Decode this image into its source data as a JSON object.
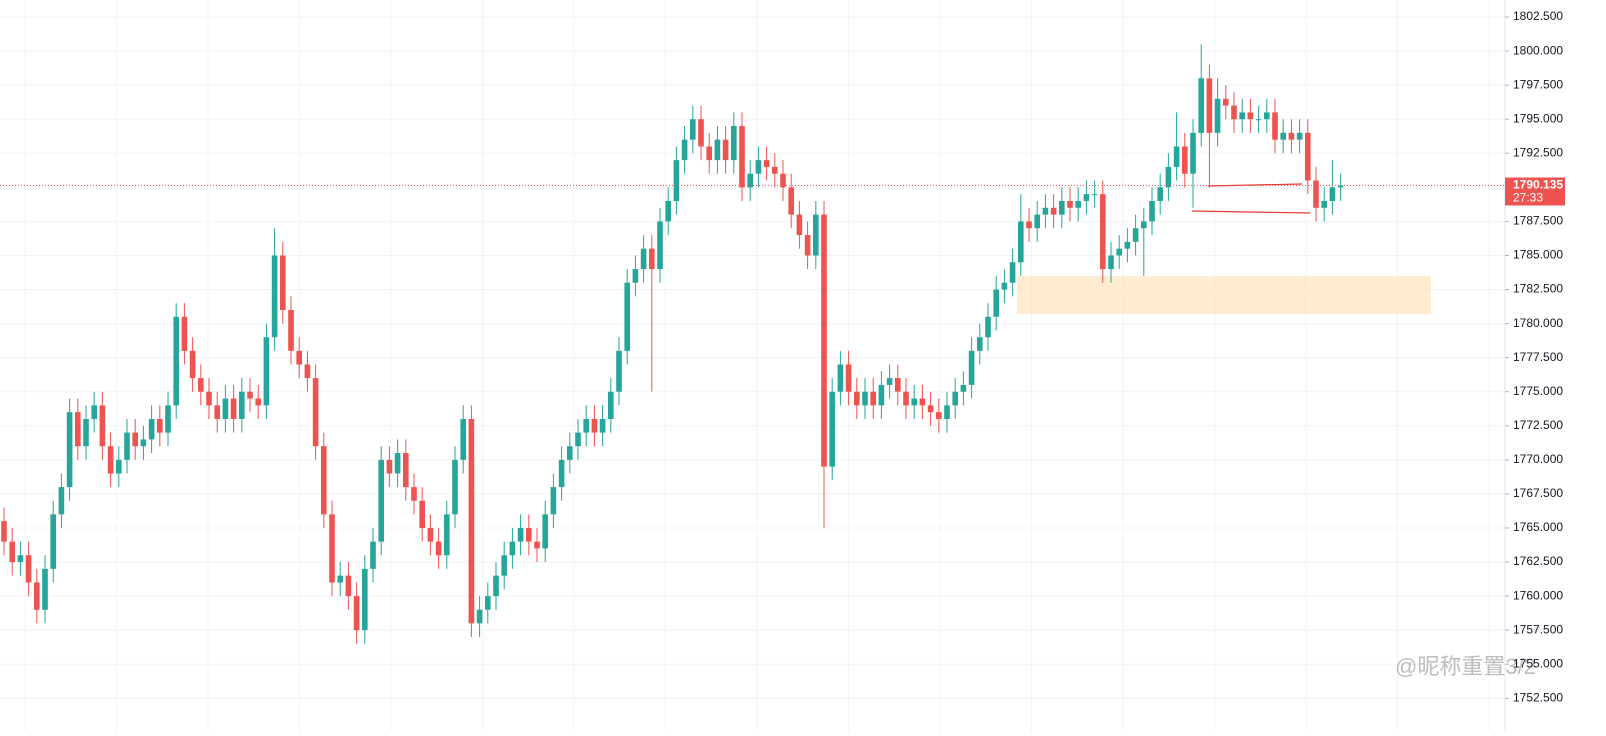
{
  "chart_data": {
    "type": "candlestick",
    "ylim": [
      1750.1,
      1803.75
    ],
    "yticks": [
      {
        "value": 1752.5,
        "label": "1752.500"
      },
      {
        "value": 1755,
        "label": "1755.000"
      },
      {
        "value": 1757.5,
        "label": "1757.500"
      },
      {
        "value": 1760,
        "label": "1760.000"
      },
      {
        "value": 1762.5,
        "label": "1762.500"
      },
      {
        "value": 1765,
        "label": "1765.000"
      },
      {
        "value": 1767.5,
        "label": "1767.500"
      },
      {
        "value": 1770,
        "label": "1770.000"
      },
      {
        "value": 1772.5,
        "label": "1772.500"
      },
      {
        "value": 1775,
        "label": "1775.000"
      },
      {
        "value": 1777.5,
        "label": "1777.500"
      },
      {
        "value": 1780,
        "label": "1780.000"
      },
      {
        "value": 1782.5,
        "label": "1782.500"
      },
      {
        "value": 1785,
        "label": "1785.000"
      },
      {
        "value": 1787.5,
        "label": "1787.500"
      },
      {
        "value": 1790,
        "label": "1790.000"
      },
      {
        "value": 1792.5,
        "label": "1792.500"
      },
      {
        "value": 1795,
        "label": "1795.000"
      },
      {
        "value": 1797.5,
        "label": "1797.500"
      },
      {
        "value": 1800,
        "label": "1800.000"
      },
      {
        "value": 1802.5,
        "label": "1802.500"
      }
    ],
    "grid": true,
    "up_color": "#26a69a",
    "down_color": "#ef5350",
    "last_price": 1790.135,
    "countdown": "27:33",
    "watermark": "@昵称重置3/2",
    "open": [
      1765.5,
      1764,
      1762.5,
      1763,
      1761,
      1759,
      1762,
      1766,
      1768,
      1773.5,
      1771,
      1773,
      1774,
      1771,
      1769,
      1770,
      1772,
      1771,
      1771.5,
      1773,
      1772,
      1774,
      1780.5,
      1778,
      1776,
      1775,
      1774,
      1773,
      1774.5,
      1773,
      1775,
      1774.5,
      1774,
      1779,
      1785,
      1781,
      1778,
      1777,
      1776,
      1771,
      1766,
      1761,
      1761.5,
      1760,
      1757.5,
      1762,
      1764,
      1770,
      1769,
      1770.5,
      1768,
      1767,
      1765,
      1764,
      1763,
      1766,
      1770,
      1773,
      1758,
      1759,
      1760,
      1761.5,
      1763,
      1764,
      1765,
      1764,
      1763.5,
      1766,
      1768,
      1770,
      1771,
      1772,
      1773,
      1772,
      1773,
      1775,
      1778,
      1783,
      1784,
      1785.5,
      1784,
      1787.5,
      1789,
      1792,
      1793.5,
      1795,
      1793,
      1792,
      1793.5,
      1792,
      1794.5,
      1790,
      1791,
      1792,
      1791.5,
      1791,
      1790,
      1788,
      1786.5,
      1785,
      1788,
      1769.5,
      1775,
      1777,
      1775,
      1774,
      1775,
      1774,
      1775.5,
      1776,
      1775,
      1774,
      1774.5,
      1774,
      1773.5,
      1773,
      1774,
      1775,
      1775.5,
      1778,
      1779,
      1780.5,
      1782.5,
      1783,
      1784.5,
      1787.5,
      1787,
      1788,
      1788.5,
      1788,
      1789,
      1788.5,
      1789,
      1789.5,
      1789.5,
      1784,
      1785,
      1785.5,
      1786,
      1787,
      1787.5,
      1789,
      1790,
      1791.5,
      1793,
      1791,
      1794,
      1798,
      1794,
      1796.5,
      1796,
      1795,
      1795.5,
      1795,
      1795,
      1795.5,
      1793.5,
      1794,
      1793.5,
      1794,
      1790.5,
      1788.5,
      1789,
      1790
    ],
    "high": [
      1766.5,
      1765,
      1764,
      1764,
      1762,
      1763,
      1767,
      1769,
      1774.5,
      1774.5,
      1774,
      1775,
      1775,
      1772,
      1771,
      1773,
      1773,
      1772.5,
      1774,
      1774,
      1775,
      1781.5,
      1781.5,
      1779,
      1777,
      1776,
      1775,
      1775.5,
      1775.5,
      1776,
      1776,
      1775.5,
      1780,
      1787,
      1786,
      1782,
      1779,
      1778,
      1777,
      1772,
      1767,
      1762.5,
      1762.5,
      1761,
      1763,
      1765,
      1771,
      1771,
      1771.5,
      1771.5,
      1769,
      1768,
      1766,
      1765,
      1767,
      1771,
      1774,
      1774,
      1760,
      1761,
      1762.5,
      1764,
      1765,
      1766,
      1766,
      1765,
      1767,
      1769,
      1771,
      1772,
      1773,
      1774,
      1774,
      1774,
      1776,
      1779,
      1784,
      1785,
      1786.5,
      1786.5,
      1788.5,
      1790,
      1793,
      1794.5,
      1796,
      1796,
      1794,
      1794.5,
      1794.5,
      1795.5,
      1795.5,
      1792,
      1793,
      1793,
      1792.5,
      1792,
      1791,
      1789,
      1787.5,
      1789,
      1789,
      1776,
      1778,
      1778,
      1776,
      1776,
      1776,
      1776.5,
      1777,
      1777,
      1776,
      1775.5,
      1775.5,
      1775,
      1774.5,
      1775,
      1776,
      1776.5,
      1779,
      1780,
      1781.5,
      1783.5,
      1784,
      1785.5,
      1789.5,
      1788.5,
      1789,
      1789.5,
      1789.5,
      1790,
      1790,
      1790,
      1790.5,
      1790.5,
      1790.5,
      1786,
      1786.5,
      1787,
      1788,
      1788.5,
      1790,
      1791,
      1792.5,
      1795.5,
      1794,
      1795,
      1800.5,
      1799,
      1798,
      1797.5,
      1797,
      1796.5,
      1796.5,
      1796,
      1796.5,
      1796.5,
      1795,
      1795,
      1795,
      1795,
      1791.5,
      1790,
      1792,
      1791
    ],
    "low": [
      1763,
      1761.5,
      1761.5,
      1760,
      1758,
      1758,
      1761,
      1765,
      1767,
      1770,
      1770,
      1772,
      1770,
      1768,
      1768,
      1769,
      1770,
      1770,
      1770.5,
      1771,
      1771,
      1773,
      1777,
      1775,
      1774,
      1773,
      1772,
      1772,
      1772,
      1772,
      1773.5,
      1773,
      1773,
      1778,
      1780,
      1777,
      1776,
      1775,
      1770,
      1765,
      1760,
      1760,
      1759,
      1756.5,
      1756.5,
      1761,
      1763,
      1768,
      1768,
      1767,
      1766,
      1764,
      1763,
      1762,
      1762,
      1765,
      1769,
      1757,
      1757,
      1758,
      1759,
      1760.5,
      1762,
      1763,
      1763,
      1762.5,
      1762.5,
      1765,
      1767,
      1769,
      1770,
      1771,
      1771,
      1771,
      1772,
      1774,
      1777,
      1782,
      1783,
      1775,
      1783,
      1786.5,
      1788,
      1791,
      1792.5,
      1792,
      1791,
      1791,
      1791,
      1791,
      1789,
      1789,
      1790,
      1790.5,
      1790,
      1789,
      1787,
      1785.5,
      1784,
      1784,
      1765,
      1768.5,
      1774,
      1774,
      1773,
      1773,
      1773,
      1773,
      1774.5,
      1774,
      1773,
      1773,
      1773,
      1772.5,
      1772,
      1772,
      1773,
      1774,
      1774.5,
      1777,
      1778,
      1779.5,
      1781.5,
      1782,
      1783.5,
      1786,
      1786,
      1787,
      1787,
      1787,
      1787.5,
      1787.5,
      1788,
      1788.5,
      1783,
      1783,
      1784,
      1784.5,
      1785,
      1783.5,
      1786.5,
      1788,
      1789,
      1790.5,
      1790,
      1788.5,
      1793,
      1790,
      1793,
      1795,
      1794,
      1794,
      1794,
      1794,
      1794,
      1792.5,
      1792.5,
      1792.5,
      1792.5,
      1789.5,
      1787.5,
      1787.5,
      1788,
      1789
    ],
    "close": [
      1764,
      1762.5,
      1763,
      1761,
      1759,
      1762,
      1766,
      1768,
      1773.5,
      1771,
      1773,
      1774,
      1771,
      1769,
      1770,
      1772,
      1771,
      1771.5,
      1773,
      1772,
      1774,
      1780.5,
      1778,
      1776,
      1775,
      1774,
      1773,
      1774.5,
      1773,
      1775,
      1774.5,
      1774,
      1779,
      1785,
      1781,
      1778,
      1777,
      1776,
      1771,
      1766,
      1761,
      1761.5,
      1760,
      1757.5,
      1762,
      1764,
      1770,
      1769,
      1770.5,
      1768,
      1767,
      1765,
      1764,
      1763,
      1766,
      1770,
      1773,
      1758,
      1759,
      1760,
      1761.5,
      1763,
      1764,
      1765,
      1764,
      1763.5,
      1766,
      1768,
      1770,
      1771,
      1772,
      1773,
      1772,
      1773,
      1775,
      1778,
      1783,
      1784,
      1785.5,
      1784,
      1787.5,
      1789,
      1792,
      1793.5,
      1795,
      1793,
      1792,
      1793.5,
      1792,
      1794.5,
      1790,
      1791,
      1792,
      1791.5,
      1791,
      1790,
      1788,
      1786.5,
      1785,
      1788,
      1769.5,
      1775,
      1777,
      1775,
      1774,
      1775,
      1774,
      1775.5,
      1776,
      1775,
      1774,
      1774.5,
      1774,
      1773.5,
      1773,
      1774,
      1775,
      1775.5,
      1778,
      1779,
      1780.5,
      1782.5,
      1783,
      1784.5,
      1787.5,
      1787,
      1788,
      1788.5,
      1788,
      1789,
      1788.5,
      1789,
      1789.5,
      1789.5,
      1784,
      1785,
      1785.5,
      1786,
      1787,
      1787.5,
      1789,
      1790,
      1791.5,
      1793,
      1791,
      1794,
      1798,
      1794,
      1796.5,
      1796,
      1795,
      1795.5,
      1795,
      1795,
      1795.5,
      1793.5,
      1794,
      1793.5,
      1794,
      1790.5,
      1788.5,
      1789,
      1790,
      1790.135
    ]
  }
}
